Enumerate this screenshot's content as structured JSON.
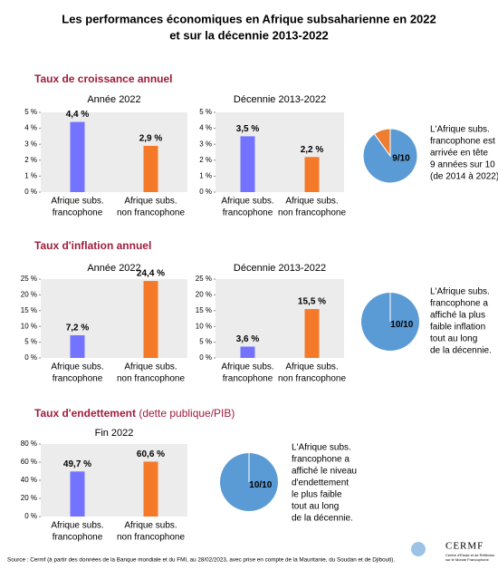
{
  "title": [
    "Les performances économiques en Afrique subsaharienne en 2022",
    "et sur la décennie 2013-2022"
  ],
  "sections": [
    {
      "text": "Taux de croissance annuel"
    },
    {
      "text": "Taux d'inflation annuel"
    },
    {
      "text": "Taux d'endettement",
      "detail": "(dette publique/PIB)"
    }
  ],
  "chart_data": [
    {
      "type": "bar",
      "title": "Année 2022",
      "categories": [
        [
          "Afrique subs.",
          "francophone"
        ],
        [
          "Afrique subs.",
          "non francophone"
        ]
      ],
      "values": [
        4.4,
        2.9
      ],
      "value_labels": [
        "4,4 %",
        "2,9 %"
      ],
      "colors": [
        "#7373ff",
        "#f47a2a"
      ],
      "ylim": [
        0,
        5
      ],
      "yticks": [
        {
          "value": 0,
          "label": "0 %"
        },
        {
          "value": 1,
          "label": "1 %"
        },
        {
          "value": 2,
          "label": "2 %"
        },
        {
          "value": 3,
          "label": "3 %"
        },
        {
          "value": 4,
          "label": "4 %"
        },
        {
          "value": 5,
          "label": "5 %"
        }
      ]
    },
    {
      "type": "bar",
      "title": "Décennie 2013-2022",
      "categories": [
        [
          "Afrique subs.",
          "francophone"
        ],
        [
          "Afrique subs.",
          "non francophone"
        ]
      ],
      "values": [
        3.5,
        2.2
      ],
      "value_labels": [
        "3,5 %",
        "2,2 %"
      ],
      "colors": [
        "#7373ff",
        "#f47a2a"
      ],
      "ylim": [
        0,
        5
      ],
      "yticks": [
        {
          "value": 0,
          "label": "0 %"
        },
        {
          "value": 1,
          "label": "1 %"
        },
        {
          "value": 2,
          "label": "2 %"
        },
        {
          "value": 3,
          "label": "3 %"
        },
        {
          "value": 4,
          "label": "4 %"
        },
        {
          "value": 5,
          "label": "5 %"
        }
      ]
    },
    {
      "type": "pie",
      "values": [
        9,
        1
      ],
      "colors": [
        "#5b9bd5",
        "#ed7d31"
      ],
      "label": "9/10"
    },
    {
      "type": "bar",
      "title": "Année 2022",
      "categories": [
        [
          "Afrique subs.",
          "francophone"
        ],
        [
          "Afrique subs.",
          "non francophone"
        ]
      ],
      "values": [
        7.2,
        24.4
      ],
      "value_labels": [
        "7,2 %",
        "24,4 %"
      ],
      "colors": [
        "#7373ff",
        "#f47a2a"
      ],
      "ylim": [
        0,
        25
      ],
      "yticks": [
        {
          "value": 0,
          "label": "0 %"
        },
        {
          "value": 5,
          "label": "5 %"
        },
        {
          "value": 10,
          "label": "10 %"
        },
        {
          "value": 15,
          "label": "15 %"
        },
        {
          "value": 20,
          "label": "20 %"
        },
        {
          "value": 25,
          "label": "25 %"
        }
      ]
    },
    {
      "type": "bar",
      "title": "Décennie 2013-2022",
      "categories": [
        [
          "Afrique subs.",
          "francophone"
        ],
        [
          "Afrique subs.",
          "non francophone"
        ]
      ],
      "values": [
        3.6,
        15.5
      ],
      "value_labels": [
        "3,6 %",
        "15,5 %"
      ],
      "colors": [
        "#7373ff",
        "#f47a2a"
      ],
      "ylim": [
        0,
        25
      ],
      "yticks": [
        {
          "value": 0,
          "label": "0 %"
        },
        {
          "value": 5,
          "label": "5 %"
        },
        {
          "value": 10,
          "label": "10 %"
        },
        {
          "value": 15,
          "label": "15 %"
        },
        {
          "value": 20,
          "label": "20 %"
        },
        {
          "value": 25,
          "label": "25 %"
        }
      ]
    },
    {
      "type": "pie",
      "values": [
        10,
        0
      ],
      "colors": [
        "#5b9bd5",
        "#ed7d31"
      ],
      "label": "10/10"
    },
    {
      "type": "bar",
      "title": "Fin 2022",
      "categories": [
        [
          "Afrique subs.",
          "francophone"
        ],
        [
          "Afrique subs.",
          "non francophone"
        ]
      ],
      "values": [
        49.7,
        60.6
      ],
      "value_labels": [
        "49,7 %",
        "60,6 %"
      ],
      "colors": [
        "#7373ff",
        "#f47a2a"
      ],
      "ylim": [
        0,
        80
      ],
      "yticks": [
        {
          "value": 0,
          "label": "0 %"
        },
        {
          "value": 20,
          "label": "20 %"
        },
        {
          "value": 40,
          "label": "40 %"
        },
        {
          "value": 60,
          "label": "60 %"
        },
        {
          "value": 80,
          "label": "80 %"
        }
      ]
    },
    {
      "type": "pie",
      "values": [
        10,
        0
      ],
      "colors": [
        "#5b9bd5",
        "#ed7d31"
      ],
      "label": "10/10"
    }
  ],
  "notes": [
    [
      "L'Afrique subs.",
      "francophone est",
      "arrivée en tête",
      "9 années sur 10",
      "(de 2014 à 2022)."
    ],
    [
      "L'Afrique subs.",
      "francophone a",
      "affiché la plus",
      "faible inflation",
      "tout au long",
      "de la décennie."
    ],
    [
      "L'Afrique subs.",
      "francophone a",
      "affiché le niveau",
      "d'endettement",
      "le plus faible",
      "tout au long",
      "de la décennie."
    ]
  ],
  "source": "Source : Cermf (à partir des données de la Banque mondiale et du FMI, au 28/02/2023, avec prise en compte de la Mauritanie, du Soudan et de Djibouti).",
  "logo": {
    "name": "CERMF",
    "tagline": [
      "Centre d'Etude et de Réflexion",
      "sur le Monde Francophone"
    ]
  }
}
